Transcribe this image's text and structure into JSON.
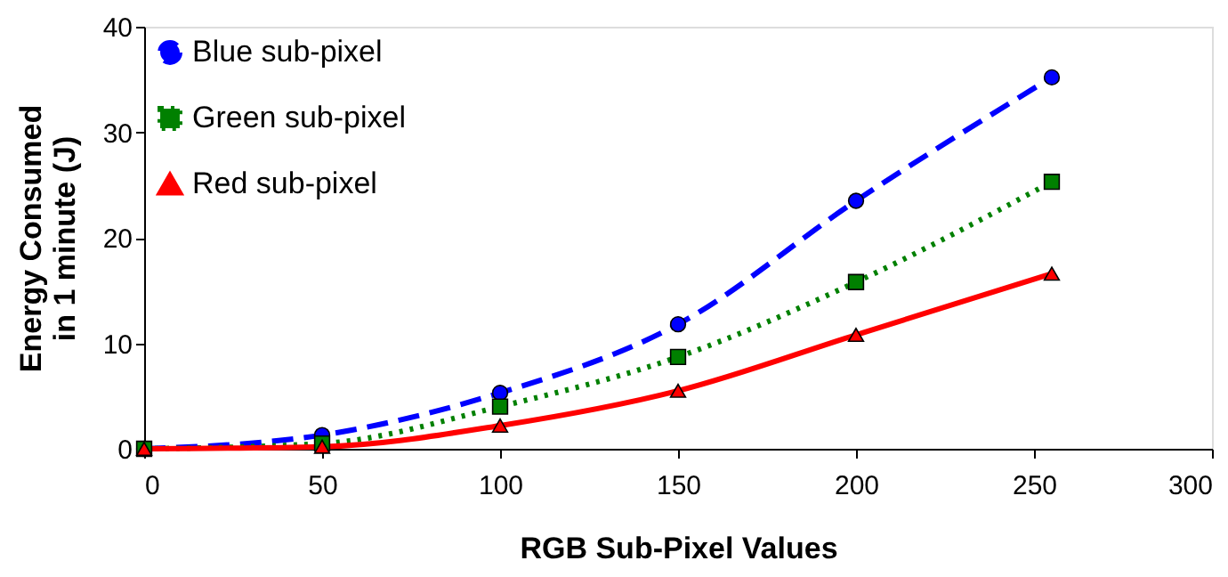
{
  "chart_data": {
    "type": "line",
    "xlabel": "RGB Sub-Pixel Values",
    "ylabel": "Energy Consumed\nin 1 minute (J)",
    "x": [
      0,
      50,
      100,
      150,
      200,
      255
    ],
    "series": [
      {
        "name": "Blue sub-pixel",
        "color": "#0000ff",
        "marker": "circle",
        "line_style": "dashed",
        "values": [
          0,
          1.3,
          5.3,
          11.8,
          23.5,
          35.2
        ]
      },
      {
        "name": "Green sub-pixel",
        "color": "#008000",
        "marker": "square",
        "line_style": "dotted",
        "values": [
          0,
          0.5,
          4.0,
          8.7,
          15.8,
          25.3
        ]
      },
      {
        "name": "Red sub-pixel",
        "color": "#ff0000",
        "marker": "triangle",
        "line_style": "solid",
        "values": [
          0,
          0.2,
          2.2,
          5.5,
          10.8,
          16.6
        ]
      }
    ],
    "xlim": [
      0,
      300
    ],
    "xticks": [
      0,
      50,
      100,
      150,
      200,
      250,
      300
    ],
    "ylim": [
      0,
      40
    ],
    "yticks": [
      0,
      10,
      20,
      30,
      40
    ],
    "grid": false,
    "legend": "top left"
  }
}
